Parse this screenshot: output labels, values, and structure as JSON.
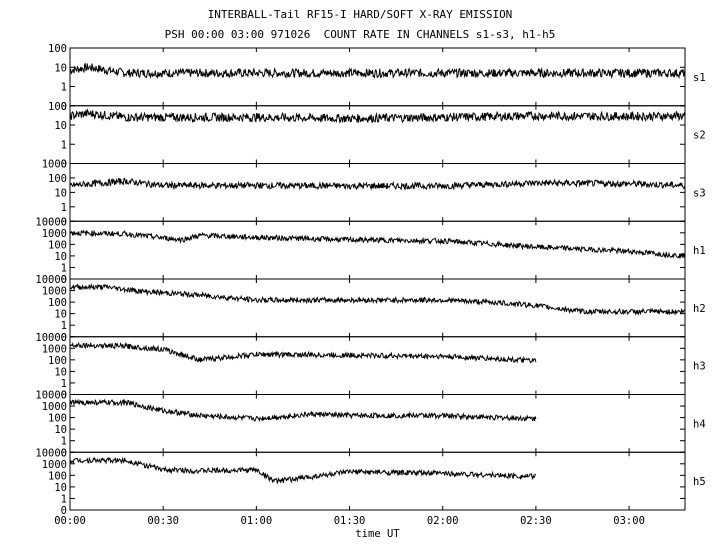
{
  "title": "INTERBALL-Tail RF15-I HARD/SOFT X-RAY EMISSION",
  "subtitle": "PSH 00:00 03:00 971026  COUNT RATE IN CHANNELS s1-s3, h1-h5",
  "chart_data": {
    "type": "line",
    "xlabel": "time UT",
    "x_unit": "hours UT",
    "xlim": [
      0,
      3.3
    ],
    "x_ticks": [
      {
        "value": 0,
        "label": "00:00"
      },
      {
        "value": 0.5,
        "label": "00:30"
      },
      {
        "value": 1.0,
        "label": "01:00"
      },
      {
        "value": 1.5,
        "label": "01:30"
      },
      {
        "value": 2.0,
        "label": "02:00"
      },
      {
        "value": 2.5,
        "label": "02:30"
      },
      {
        "value": 3.0,
        "label": "03:00"
      }
    ],
    "y_scale": "log (0 at bottom)",
    "panels": [
      {
        "name": "s1",
        "ylim": [
          0,
          100
        ],
        "y_ticks": [
          "0",
          "1",
          "10",
          "100"
        ],
        "x": [
          0,
          0.1,
          0.2,
          0.3,
          0.5,
          1.0,
          1.5,
          2.0,
          2.5,
          3.0,
          3.3
        ],
        "values": [
          7,
          10,
          7,
          5,
          5,
          5,
          5,
          5,
          5,
          5,
          5
        ]
      },
      {
        "name": "s2",
        "ylim": [
          0,
          100
        ],
        "y_ticks": [
          "0",
          "1",
          "10",
          "100"
        ],
        "x": [
          0,
          0.1,
          0.3,
          0.5,
          1.0,
          1.5,
          2.0,
          2.5,
          3.0,
          3.3
        ],
        "values": [
          30,
          40,
          25,
          25,
          25,
          22,
          25,
          30,
          28,
          30
        ]
      },
      {
        "name": "s3",
        "ylim": [
          0,
          1000
        ],
        "y_ticks": [
          "0",
          "1",
          "10",
          "100",
          "1000"
        ],
        "x": [
          0,
          0.3,
          0.5,
          1.0,
          1.5,
          2.0,
          2.5,
          3.0,
          3.3
        ],
        "values": [
          30,
          60,
          30,
          30,
          28,
          28,
          45,
          40,
          30
        ]
      },
      {
        "name": "h1",
        "ylim": [
          0,
          10000
        ],
        "y_ticks": [
          "0",
          "1",
          "10",
          "100",
          "1000",
          "10000"
        ],
        "x": [
          0,
          0.3,
          0.6,
          0.7,
          1.0,
          1.5,
          2.0,
          2.5,
          3.0,
          3.3
        ],
        "values": [
          1000,
          800,
          250,
          600,
          400,
          250,
          200,
          60,
          25,
          10
        ]
      },
      {
        "name": "h2",
        "ylim": [
          0,
          10000
        ],
        "y_ticks": [
          "0",
          "1",
          "10",
          "100",
          "1000",
          "10000"
        ],
        "x": [
          0,
          0.2,
          0.4,
          0.7,
          1.0,
          1.5,
          2.0,
          2.3,
          2.5,
          2.75,
          3.3
        ],
        "values": [
          2000,
          2000,
          800,
          400,
          150,
          150,
          150,
          90,
          50,
          15,
          15
        ]
      },
      {
        "name": "h3",
        "ylim": [
          0,
          10000
        ],
        "y_ticks": [
          "0",
          "1",
          "10",
          "100",
          "1000",
          "10000"
        ],
        "x": [
          0,
          0.3,
          0.5,
          0.7,
          1.0,
          1.5,
          2.0,
          2.3,
          2.5
        ],
        "values": [
          2000,
          1500,
          800,
          100,
          300,
          250,
          200,
          120,
          80
        ]
      },
      {
        "name": "h4",
        "ylim": [
          0,
          10000
        ],
        "y_ticks": [
          "0",
          "1",
          "10",
          "100",
          "1000",
          "10000"
        ],
        "x": [
          0,
          0.3,
          0.5,
          0.7,
          1.0,
          1.3,
          1.5,
          2.0,
          2.3,
          2.5
        ],
        "values": [
          2000,
          2000,
          400,
          150,
          80,
          200,
          150,
          150,
          100,
          80
        ]
      },
      {
        "name": "h5",
        "ylim": [
          0,
          10000
        ],
        "y_ticks": [
          "0",
          "1",
          "10",
          "100",
          "1000",
          "10000"
        ],
        "x": [
          0,
          0.3,
          0.5,
          0.7,
          1.0,
          1.1,
          1.5,
          2.0,
          2.3,
          2.5
        ],
        "values": [
          2000,
          2000,
          300,
          250,
          300,
          30,
          200,
          150,
          100,
          80
        ]
      }
    ]
  }
}
